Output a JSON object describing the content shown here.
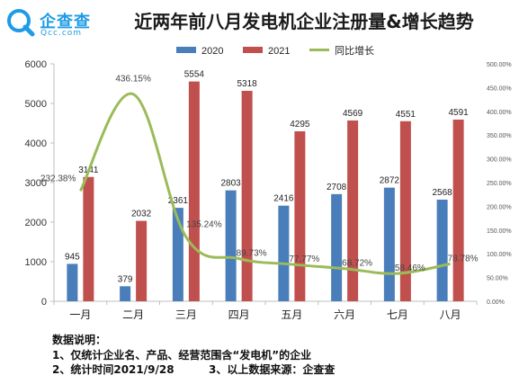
{
  "logo": {
    "name": "企查查",
    "domain": "Qcc.com"
  },
  "chart_data": {
    "type": "bar",
    "title": "近两年前八月发电机企业注册量&增长趋势",
    "categories": [
      "一月",
      "二月",
      "三月",
      "四月",
      "五月",
      "六月",
      "七月",
      "八月"
    ],
    "series": [
      {
        "name": "2020",
        "type": "bar",
        "axis": "left",
        "color": "#4a7ebb",
        "values": [
          945,
          379,
          2361,
          2803,
          2416,
          2708,
          2872,
          2568
        ]
      },
      {
        "name": "2021",
        "type": "bar",
        "axis": "left",
        "color": "#c0504d",
        "values": [
          3141,
          2032,
          5554,
          5318,
          4295,
          4569,
          4551,
          4591
        ]
      },
      {
        "name": "同比增长",
        "type": "line",
        "axis": "right",
        "color": "#9bbb59",
        "values": [
          232.38,
          436.15,
          135.24,
          89.73,
          77.77,
          68.72,
          58.46,
          78.78
        ],
        "labels": [
          "232.38%",
          "436.15%",
          "135.24%",
          "89.73%",
          "77.77%",
          "68.72%",
          "58.46%",
          "78.78%"
        ]
      }
    ],
    "y_left": {
      "min": 0,
      "max": 6000,
      "ticks": [
        "0",
        "1000",
        "2000",
        "3000",
        "4000",
        "5000",
        "6000"
      ]
    },
    "y_right": {
      "min": 0,
      "max": 500,
      "ticks": [
        "0.00%",
        "50.00%",
        "100.00%",
        "150.00%",
        "200.00%",
        "250.00%",
        "300.00%",
        "350.00%",
        "400.00%",
        "450.00%",
        "500.00%"
      ]
    },
    "legend": "top",
    "grid": false
  },
  "notes": {
    "heading": "数据说明：",
    "line1": "1、仅统计企业名、产品、经营范围含“发电机”的企业",
    "line2": "2、统计时间2021/9/28",
    "line3": "3、以上数据来源：企查查"
  }
}
